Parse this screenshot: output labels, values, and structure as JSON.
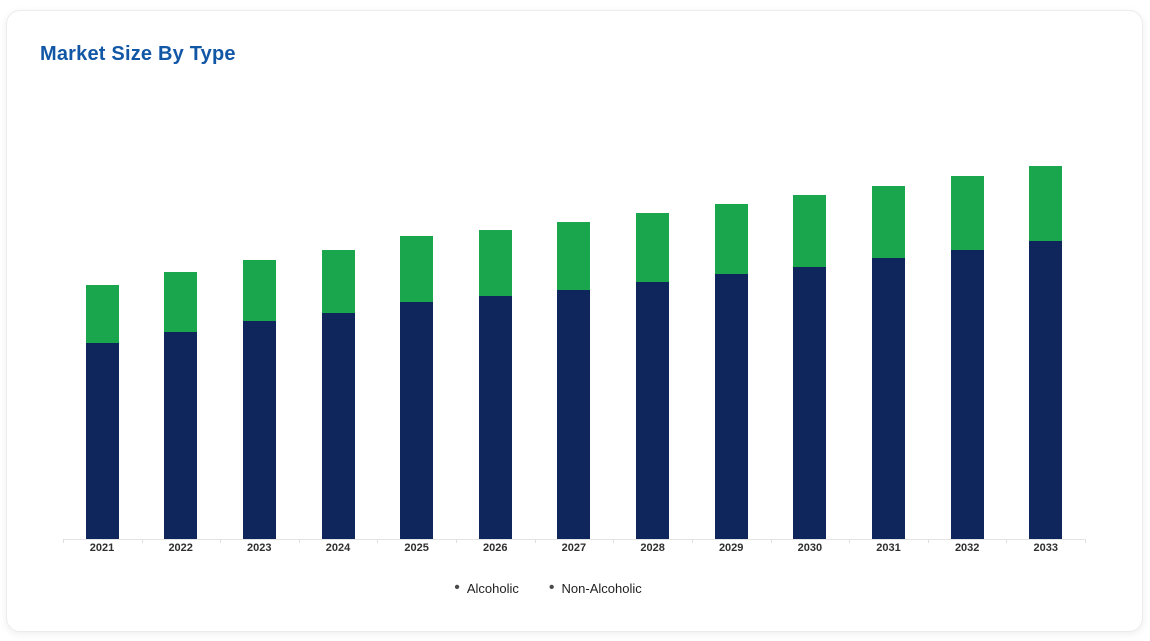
{
  "card": {
    "title": "Market Size By Type",
    "title_color": "#1257a6",
    "background": "#ffffff",
    "border_color": "#ececec"
  },
  "chart_data": {
    "type": "bar",
    "stacked": true,
    "title": "Market Size By Type",
    "categories": [
      "2021",
      "2022",
      "2023",
      "2024",
      "2025",
      "2026",
      "2027",
      "2028",
      "2029",
      "2030",
      "2031",
      "2032",
      "2033"
    ],
    "series": [
      {
        "name": "Alcoholic",
        "color": "#0e265c",
        "values": [
          196,
          207,
          218,
          226,
          237,
          243,
          249,
          257,
          265,
          272,
          281,
          289,
          298
        ]
      },
      {
        "name": "Non-Alcoholic",
        "color": "#1aa64d",
        "values": [
          58,
          60,
          61,
          63,
          66,
          66,
          68,
          69,
          70,
          72,
          72,
          74,
          75
        ]
      }
    ],
    "xlabel": "",
    "ylabel": "",
    "ylim": [
      0,
      438
    ],
    "grid": false,
    "y_axis_visible": false,
    "legend_position": "bottom"
  },
  "legend": {
    "bullet": "•",
    "items": [
      {
        "label": "Alcoholic"
      },
      {
        "label": "Non-Alcoholic"
      }
    ],
    "text_color": "#1f1f1f",
    "bullet_color": "#4a4a4a"
  },
  "axis": {
    "line_color": "#e4e4e4",
    "tick_color": "#e0e0e0",
    "label_color": "#2f2f2f"
  }
}
